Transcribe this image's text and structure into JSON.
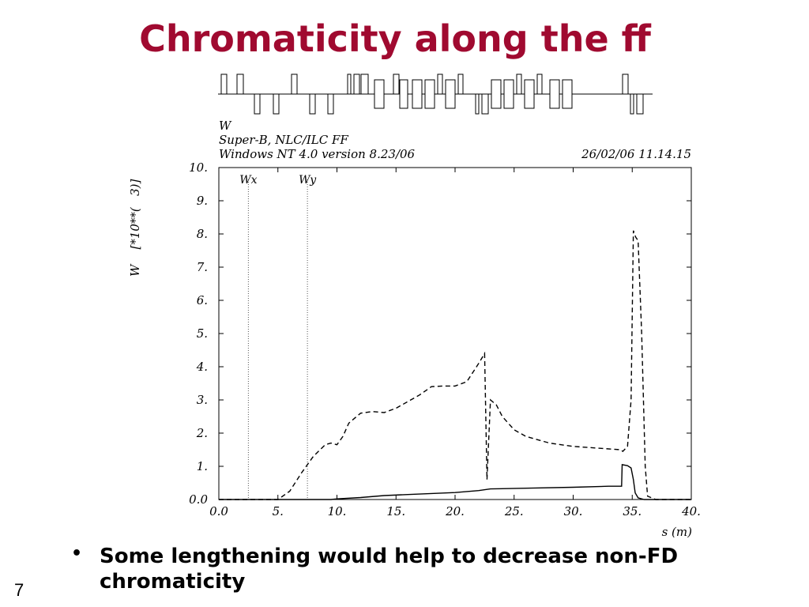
{
  "slide": {
    "title": "Chromaticity along the ff",
    "bullet": "Some lengthening would help to decrease non-FD chromaticity",
    "bullet_marker": "•",
    "number": "7"
  },
  "plot_header": {
    "line1": "W",
    "line2": "Super-B, NLC/ILC FF",
    "line3": "Windows NT 4.0 version 8.23/06",
    "datetime": "26/02/06  11.14.15"
  },
  "chart_data": {
    "type": "line",
    "title": "W",
    "xlabel": "s (m)",
    "ylabel": "W    [*10**(   3)]",
    "xlim": [
      0,
      40
    ],
    "ylim": [
      0,
      10
    ],
    "x_ticks": [
      "0.0",
      "5.",
      "10.",
      "15.",
      "20.",
      "25.",
      "30.",
      "35.",
      "40."
    ],
    "y_ticks": [
      "0.0",
      "1.",
      "2.",
      "3.",
      "4.",
      "5.",
      "6.",
      "7.",
      "8.",
      "9.",
      "10."
    ],
    "markers": [
      {
        "label": "Wx",
        "x": 2.5
      },
      {
        "label": "Wy",
        "x": 7.5
      }
    ],
    "grid": false,
    "series": [
      {
        "name": "Wx",
        "style": "solid",
        "x": [
          0,
          9.5,
          10,
          12,
          14,
          16,
          18,
          20,
          21,
          22,
          23,
          26,
          30,
          33,
          34.1,
          34.15,
          34.6,
          34.9,
          35.1,
          35.25,
          35.5,
          36,
          40
        ],
        "y": [
          0,
          0,
          0.02,
          0.06,
          0.12,
          0.15,
          0.18,
          0.21,
          0.24,
          0.27,
          0.32,
          0.34,
          0.37,
          0.4,
          0.4,
          1.05,
          1.02,
          0.95,
          0.6,
          0.2,
          0.05,
          0,
          0
        ]
      },
      {
        "name": "Wy",
        "style": "dashed",
        "x": [
          0,
          5,
          6,
          7,
          8,
          9,
          9.5,
          10,
          10.5,
          11,
          12,
          13,
          14,
          15,
          16,
          17,
          18,
          19,
          20,
          21,
          22,
          22.5,
          22.7,
          23,
          23.5,
          24,
          25,
          26,
          28,
          30,
          32,
          34,
          34.2,
          34.6,
          34.9,
          35.1,
          35.3,
          35.5,
          35.8,
          36.1,
          36.3,
          37,
          40
        ],
        "y": [
          0,
          0,
          0.25,
          0.8,
          1.3,
          1.65,
          1.7,
          1.65,
          1.9,
          2.3,
          2.6,
          2.65,
          2.62,
          2.75,
          2.95,
          3.15,
          3.4,
          3.42,
          3.42,
          3.55,
          4.1,
          4.4,
          0.6,
          3.0,
          2.85,
          2.5,
          2.1,
          1.9,
          1.7,
          1.6,
          1.55,
          1.5,
          1.45,
          1.6,
          3.0,
          8.1,
          7.9,
          7.8,
          5.0,
          1.0,
          0.1,
          0,
          0
        ]
      }
    ]
  }
}
